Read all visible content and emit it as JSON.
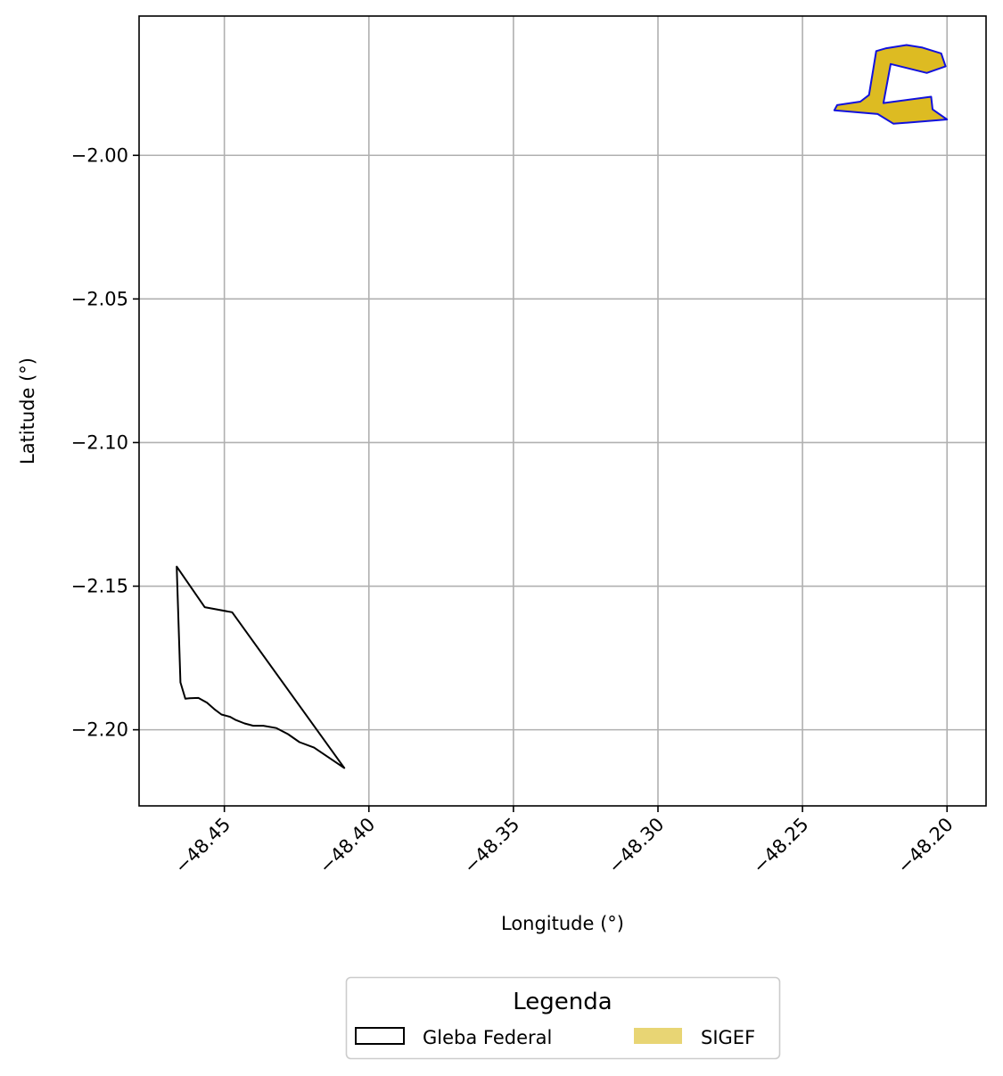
{
  "chart_data": {
    "type": "map",
    "xlabel": "Longitude (°)",
    "ylabel": "Latitude (°)",
    "xlim": [
      -48.4795,
      -48.1865
    ],
    "ylim": [
      -2.2265,
      -1.9515
    ],
    "x_ticks": [
      -48.45,
      -48.4,
      -48.35,
      -48.3,
      -48.25,
      -48.2
    ],
    "x_tick_labels": [
      "−48.45",
      "−48.40",
      "−48.35",
      "−48.30",
      "−48.25",
      "−48.20"
    ],
    "y_ticks": [
      -2.0,
      -2.05,
      -2.1,
      -2.15,
      -2.2
    ],
    "y_tick_labels": [
      "−2.00",
      "−2.05",
      "−2.10",
      "−2.15",
      "−2.20"
    ],
    "grid": true,
    "legend": {
      "title": "Legenda",
      "placement": "bottom-center",
      "entries": [
        {
          "label": "Gleba Federal",
          "style": "outline",
          "edge": "#000000",
          "fill": "none"
        },
        {
          "label": "SIGEF",
          "style": "filled",
          "edge": "none",
          "fill": "#E8D574"
        }
      ]
    },
    "layers": [
      {
        "name": "Gleba Federal",
        "fill": "none",
        "edge": "#000000",
        "polygon": [
          [
            -48.4665,
            -2.1432
          ],
          [
            -48.4568,
            -2.1573
          ],
          [
            -48.4473,
            -2.1591
          ],
          [
            -48.4085,
            -2.2133
          ],
          [
            -48.419,
            -2.2062
          ],
          [
            -48.424,
            -2.2043
          ],
          [
            -48.428,
            -2.2015
          ],
          [
            -48.432,
            -2.1994
          ],
          [
            -48.4365,
            -2.1986
          ],
          [
            -48.44,
            -2.1986
          ],
          [
            -48.443,
            -2.1978
          ],
          [
            -48.446,
            -2.1966
          ],
          [
            -48.448,
            -2.1955
          ],
          [
            -48.451,
            -2.1947
          ],
          [
            -48.4535,
            -2.1928
          ],
          [
            -48.456,
            -2.1906
          ],
          [
            -48.459,
            -2.1889
          ],
          [
            -48.462,
            -2.189
          ],
          [
            -48.4635,
            -2.1892
          ],
          [
            -48.4652,
            -2.1835
          ],
          [
            -48.4665,
            -2.1432
          ]
        ]
      },
      {
        "name": "SIGEF",
        "fill": "#DDBB22",
        "edge": "#1111DD",
        "polygon": [
          [
            -48.2245,
            -1.9637
          ],
          [
            -48.221,
            -1.9627
          ],
          [
            -48.214,
            -1.9616
          ],
          [
            -48.2085,
            -1.9625
          ],
          [
            -48.202,
            -1.9645
          ],
          [
            -48.2005,
            -1.969
          ],
          [
            -48.207,
            -1.9713
          ],
          [
            -48.2195,
            -1.9682
          ],
          [
            -48.222,
            -1.9818
          ],
          [
            -48.2055,
            -1.9796
          ],
          [
            -48.205,
            -1.984
          ],
          [
            -48.2,
            -1.9875
          ],
          [
            -48.2185,
            -1.989
          ],
          [
            -48.224,
            -1.9856
          ],
          [
            -48.239,
            -1.9843
          ],
          [
            -48.238,
            -1.9825
          ],
          [
            -48.23,
            -1.9813
          ],
          [
            -48.227,
            -1.979
          ],
          [
            -48.2255,
            -1.97
          ],
          [
            -48.2245,
            -1.9637
          ]
        ]
      }
    ]
  }
}
